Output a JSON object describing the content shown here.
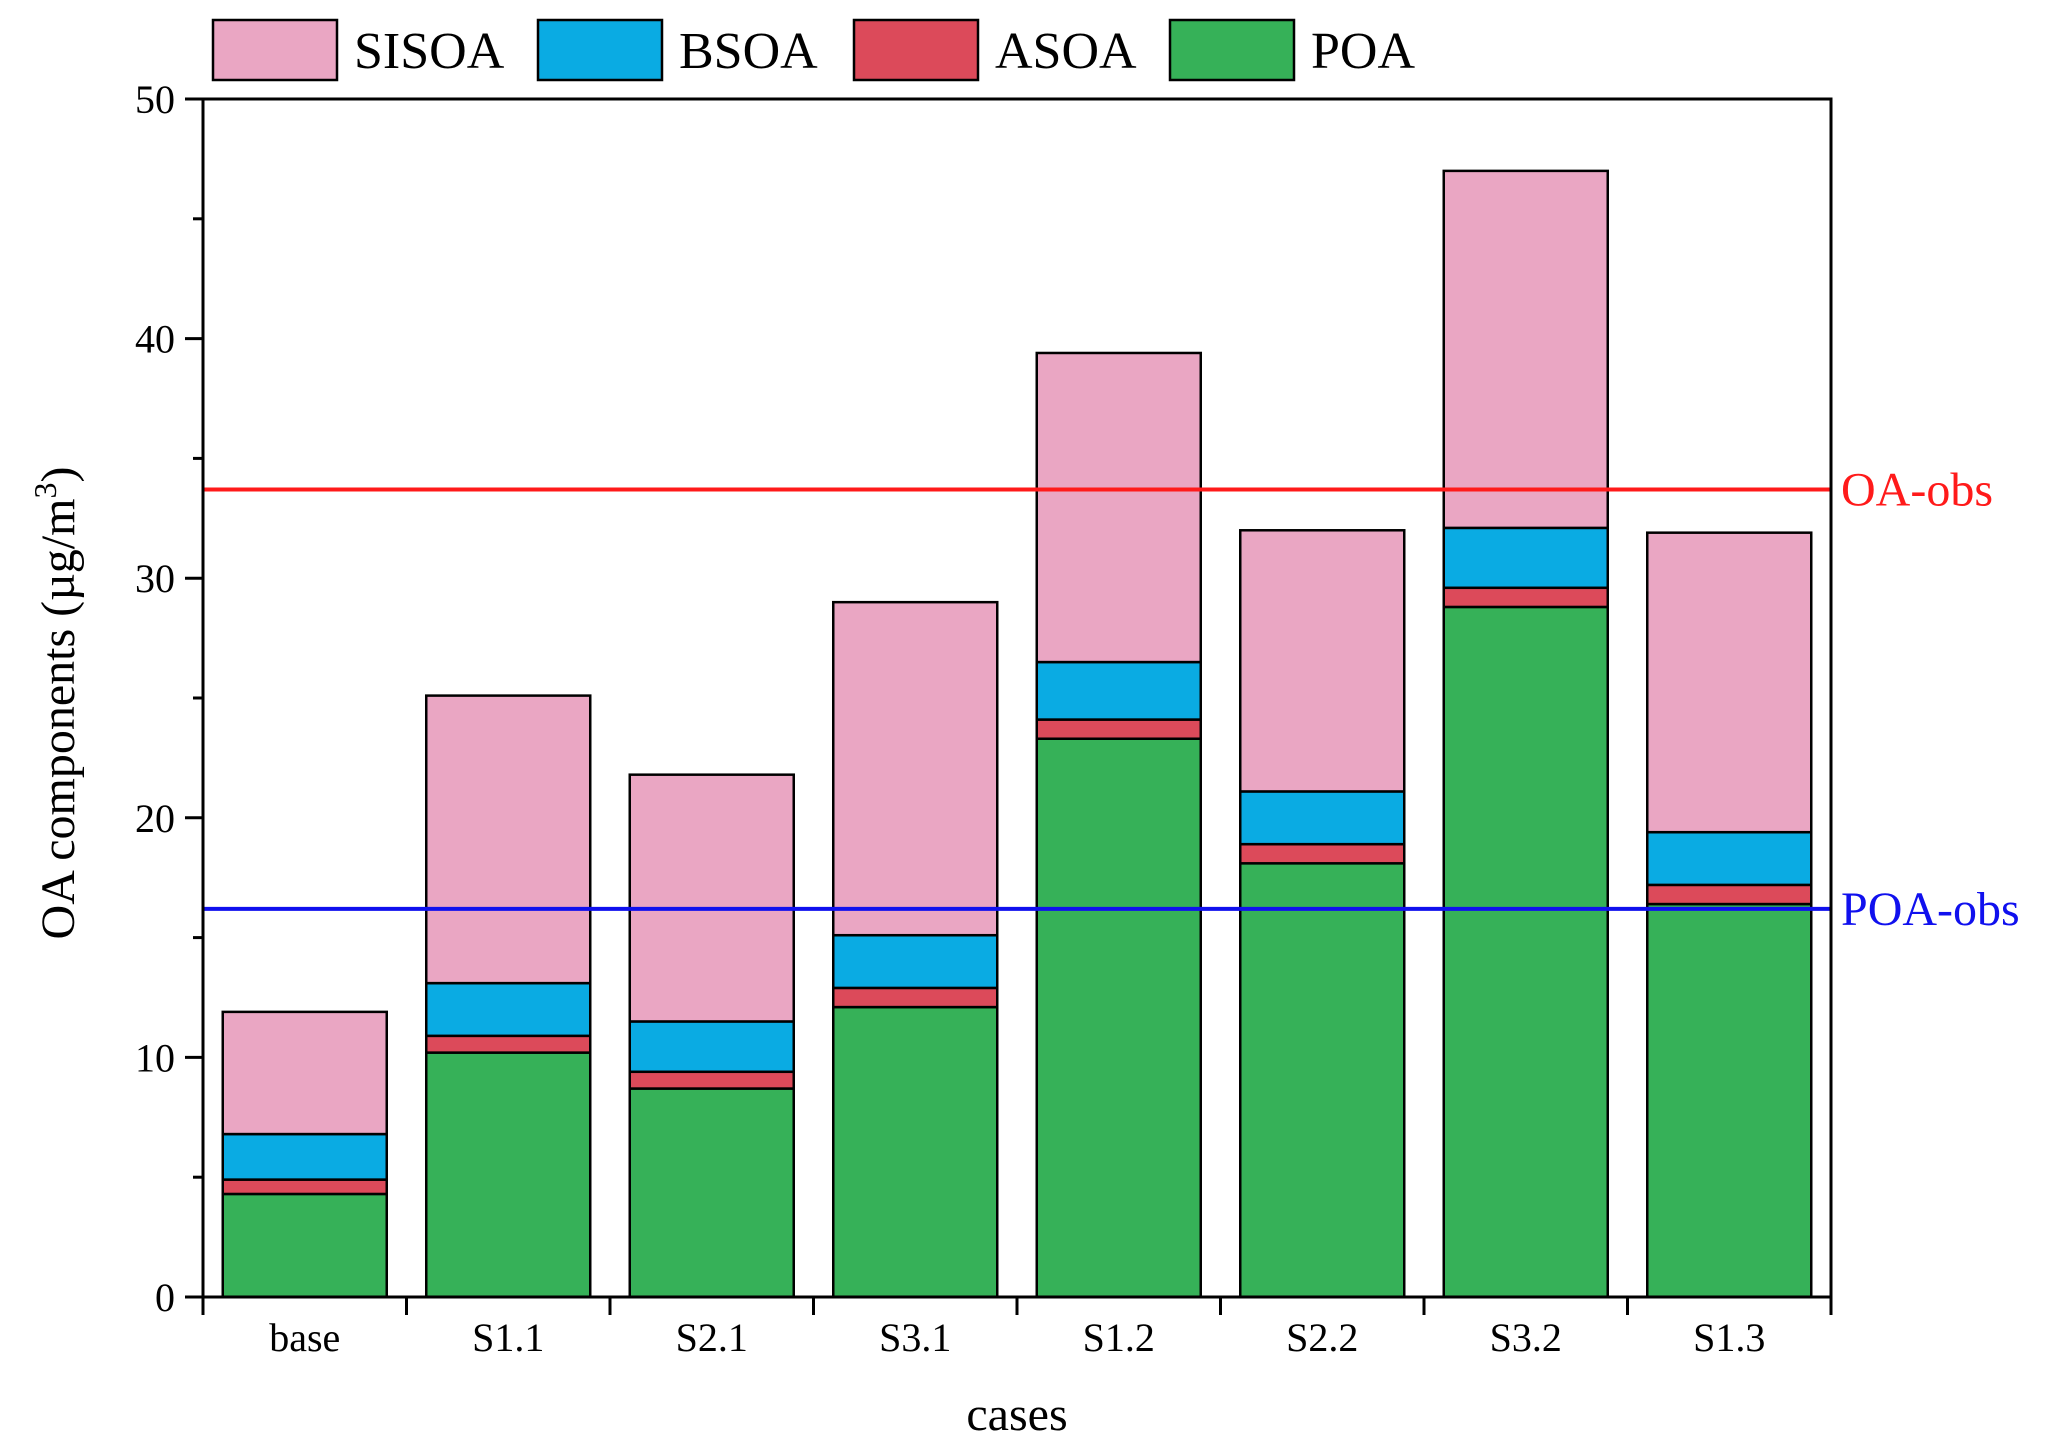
{
  "chart_data": {
    "type": "bar",
    "stacked": true,
    "title": "",
    "xlabel": "cases",
    "ylabel_main": "OA components (µg/m",
    "ylabel_sup": "3",
    "ylabel_end": ")",
    "ylim": [
      0,
      50
    ],
    "yticks": [
      "0",
      "10",
      "20",
      "30",
      "40",
      "50"
    ],
    "grid": false,
    "legend_position": "top",
    "categories": [
      "base",
      "S1.1",
      "S2.1",
      "S3.1",
      "S1.2",
      "S2.2",
      "S3.2",
      "S1.3"
    ],
    "series": [
      {
        "name": "POA",
        "color": "#36b158",
        "values": [
          4.3,
          10.2,
          8.7,
          12.1,
          23.3,
          18.1,
          28.8,
          16.4
        ]
      },
      {
        "name": "ASOA",
        "color": "#dc4a5a",
        "values": [
          0.6,
          0.7,
          0.7,
          0.8,
          0.8,
          0.8,
          0.8,
          0.8
        ]
      },
      {
        "name": "BSOA",
        "color": "#0aabe3",
        "values": [
          1.9,
          2.2,
          2.1,
          2.2,
          2.4,
          2.2,
          2.5,
          2.2
        ]
      },
      {
        "name": "SISOA",
        "color": "#eaa6c3",
        "values": [
          5.1,
          12.0,
          10.3,
          13.9,
          12.9,
          10.9,
          14.9,
          12.5
        ]
      }
    ],
    "legend_order": [
      "SISOA",
      "BSOA",
      "ASOA",
      "POA"
    ],
    "reference_lines": [
      {
        "label": "OA-obs",
        "value": 33.7,
        "color": "#ff1a1a"
      },
      {
        "label": "POA-obs",
        "value": 16.2,
        "color": "#1010ee"
      }
    ]
  }
}
